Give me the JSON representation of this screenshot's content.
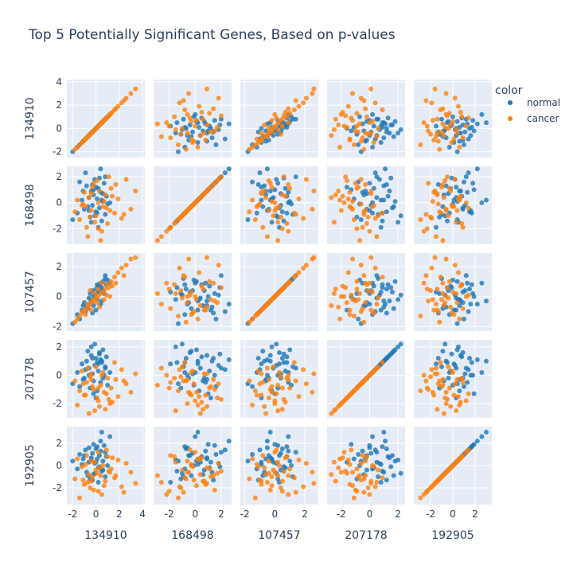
{
  "chart_data": {
    "type": "scatter",
    "subtype": "scatter-matrix",
    "title": "Top 5 Potentially Significant Genes, Based on p-values",
    "dimensions": [
      "134910",
      "168498",
      "107457",
      "207178",
      "192905"
    ],
    "axis_ranges": {
      "134910": [
        -2.5,
        4.2
      ],
      "168498": [
        -3.2,
        2.8
      ],
      "107457": [
        -2.3,
        2.9
      ],
      "207178": [
        -3.0,
        2.5
      ],
      "192905": [
        -3.5,
        3.5
      ]
    },
    "ticks": {
      "134910": [
        "-2",
        "0",
        "2",
        "4"
      ],
      "168498": [
        "-2",
        "0",
        "2"
      ],
      "107457": [
        "-2",
        "0",
        "2"
      ],
      "207178": [
        "-2",
        "0",
        "2"
      ],
      "192905": [
        "-2",
        "0",
        "2"
      ]
    },
    "tick_values": {
      "134910": [
        -2,
        0,
        2,
        4
      ],
      "168498": [
        -2,
        0,
        2
      ],
      "107457": [
        -2,
        0,
        2
      ],
      "207178": [
        -2,
        0,
        2
      ],
      "192905": [
        -2,
        0,
        2
      ]
    },
    "legend": {
      "title": "color",
      "placement": "top-right",
      "entries": [
        {
          "name": "normal",
          "color": "#1f77b4"
        },
        {
          "name": "cancer",
          "color": "#ff7f0e"
        }
      ]
    },
    "grid": true,
    "series": [
      {
        "name": "normal",
        "color": "#1f77b4",
        "points": [
          [
            -2.0,
            -1.3,
            -1.8,
            -0.6,
            0.4
          ],
          [
            -1.6,
            -0.8,
            -1.2,
            0.2,
            -0.3
          ],
          [
            -1.2,
            0.2,
            -0.9,
            0.8,
            0.1
          ],
          [
            -1.0,
            -0.5,
            -0.4,
            -0.2,
            0.9
          ],
          [
            -0.8,
            1.3,
            -0.7,
            1.0,
            -0.6
          ],
          [
            -0.6,
            0.4,
            -0.1,
            0.5,
            0.3
          ],
          [
            -0.5,
            -1.1,
            0.2,
            -0.9,
            -1.2
          ],
          [
            -0.4,
            0.9,
            -0.3,
            1.4,
            0.7
          ],
          [
            -0.3,
            -0.2,
            0.4,
            0.1,
            1.1
          ],
          [
            -0.2,
            0.6,
            -0.6,
            -0.4,
            -0.8
          ],
          [
            -0.1,
            1.8,
            0.1,
            0.7,
            0.2
          ],
          [
            0.0,
            -0.7,
            0.5,
            1.2,
            1.5
          ],
          [
            0.1,
            0.3,
            -0.2,
            -1.1,
            0.6
          ],
          [
            0.2,
            1.1,
            0.7,
            0.3,
            -0.2
          ],
          [
            0.3,
            -0.4,
            0.3,
            1.6,
            0.9
          ],
          [
            0.4,
            0.8,
            0.9,
            -0.5,
            1.3
          ],
          [
            0.5,
            -1.4,
            0.6,
            0.9,
            -0.5
          ],
          [
            0.6,
            0.1,
            1.0,
            1.8,
            0.4
          ],
          [
            0.7,
            1.5,
            0.2,
            0.0,
            1.8
          ],
          [
            0.8,
            -0.9,
            1.2,
            0.6,
            -1.0
          ],
          [
            0.9,
            0.5,
            0.8,
            1.3,
            0.8
          ],
          [
            1.0,
            -0.1,
            1.1,
            -0.7,
            0.0
          ],
          [
            -0.9,
            2.3,
            -1.0,
            0.4,
            1.4
          ],
          [
            -0.7,
            -0.3,
            -0.8,
            1.7,
            -0.9
          ],
          [
            -0.2,
            1.0,
            0.0,
            -1.3,
            1.9
          ],
          [
            0.2,
            -1.9,
            0.3,
            0.8,
            -1.5
          ],
          [
            0.4,
            2.6,
            -0.5,
            1.1,
            2.2
          ],
          [
            0.6,
            0.7,
            0.4,
            -0.2,
            -0.4
          ],
          [
            -0.4,
            -1.5,
            -0.2,
            2.0,
            0.5
          ],
          [
            -1.4,
            1.6,
            -1.5,
            -0.8,
            1.0
          ],
          [
            1.2,
            0.0,
            0.9,
            0.2,
            2.6
          ],
          [
            0.3,
            1.9,
            0.6,
            1.5,
            -0.1
          ],
          [
            -0.6,
            -0.6,
            -0.5,
            0.0,
            1.6
          ],
          [
            0.0,
            1.2,
            -0.9,
            -1.6,
            0.3
          ],
          [
            0.8,
            2.0,
            1.4,
            0.5,
            1.2
          ],
          [
            -0.1,
            -1.0,
            0.1,
            2.2,
            -0.7
          ],
          [
            0.5,
            0.2,
            -0.3,
            1.0,
            3.0
          ],
          [
            -1.1,
            0.9,
            -0.6,
            -0.3,
            0.6
          ],
          [
            0.1,
            -0.8,
            0.8,
            0.9,
            1.7
          ],
          [
            -0.3,
            1.4,
            -1.1,
            1.2,
            -1.3
          ]
        ]
      },
      {
        "name": "cancer",
        "color": "#ff7f0e",
        "points": [
          [
            3.4,
            0.9,
            2.6,
            0.1,
            -1.6
          ],
          [
            3.0,
            -0.5,
            2.5,
            -1.2,
            -0.6
          ],
          [
            2.6,
            1.8,
            2.1,
            -0.6,
            0.2
          ],
          [
            2.2,
            -1.2,
            1.9,
            0.4,
            -1.9
          ],
          [
            1.9,
            0.3,
            1.6,
            -1.5,
            0.5
          ],
          [
            1.6,
            -0.8,
            1.3,
            0.9,
            -1.1
          ],
          [
            1.3,
            1.1,
            1.0,
            -0.9,
            -0.3
          ],
          [
            1.0,
            -1.6,
            0.8,
            -0.2,
            0.8
          ],
          [
            0.8,
            0.6,
            0.5,
            -2.4,
            -1.4
          ],
          [
            0.6,
            -0.3,
            0.3,
            0.2,
            0.0
          ],
          [
            0.4,
            -2.9,
            0.2,
            -0.7,
            -0.9
          ],
          [
            0.2,
            0.0,
            0.0,
            -1.8,
            1.2
          ],
          [
            0.0,
            -1.0,
            -0.1,
            0.6,
            -0.4
          ],
          [
            -0.2,
            1.5,
            -0.3,
            -1.0,
            -2.2
          ],
          [
            -0.4,
            -0.6,
            -0.4,
            -0.3,
            0.4
          ],
          [
            -0.6,
            0.4,
            -0.6,
            -2.7,
            -0.8
          ],
          [
            -0.8,
            -1.9,
            -0.8,
            -0.5,
            0.9
          ],
          [
            -1.0,
            0.8,
            -0.9,
            -1.4,
            -1.7
          ],
          [
            -1.2,
            -0.2,
            -1.1,
            0.3,
            -0.1
          ],
          [
            -1.4,
            -1.3,
            -1.3,
            -1.1,
            -2.9
          ],
          [
            -1.6,
            0.2,
            -1.5,
            -2.1,
            0.6
          ],
          [
            -1.8,
            -0.7,
            -1.7,
            -0.4,
            -1.2
          ],
          [
            1.1,
            2.0,
            0.6,
            -1.7,
            -0.5
          ],
          [
            0.5,
            -2.2,
            0.9,
            0.0,
            -2.6
          ],
          [
            -0.3,
            1.2,
            -0.2,
            -0.8,
            -1.0
          ],
          [
            0.9,
            -0.4,
            0.1,
            -1.3,
            1.4
          ],
          [
            -0.7,
            -2.6,
            -0.5,
            0.5,
            -1.5
          ],
          [
            0.3,
            0.9,
            -0.7,
            -2.2,
            -0.2
          ],
          [
            -0.5,
            -1.1,
            0.4,
            -0.1,
            -2.0
          ],
          [
            1.4,
            0.5,
            0.7,
            -1.9,
            0.7
          ],
          [
            -1.1,
            -0.1,
            -1.0,
            -0.6,
            -1.3
          ],
          [
            0.1,
            1.7,
            -0.4,
            -1.6,
            -0.7
          ],
          [
            2.4,
            -0.9,
            1.4,
            -0.4,
            -2.4
          ],
          [
            -0.1,
            -1.5,
            0.2,
            -2.5,
            0.3
          ],
          [
            0.7,
            0.1,
            -0.2,
            -1.2,
            -1.8
          ],
          [
            1.7,
            1.4,
            0.9,
            -0.3,
            -0.9
          ],
          [
            -0.9,
            -0.3,
            -1.2,
            -1.4,
            0.1
          ],
          [
            0.2,
            -2.0,
            0.5,
            -0.9,
            -2.3
          ],
          [
            1.2,
            -0.6,
            0.0,
            -2.0,
            -0.6
          ],
          [
            -0.4,
            0.7,
            -0.9,
            0.1,
            -1.4
          ]
        ]
      }
    ]
  }
}
